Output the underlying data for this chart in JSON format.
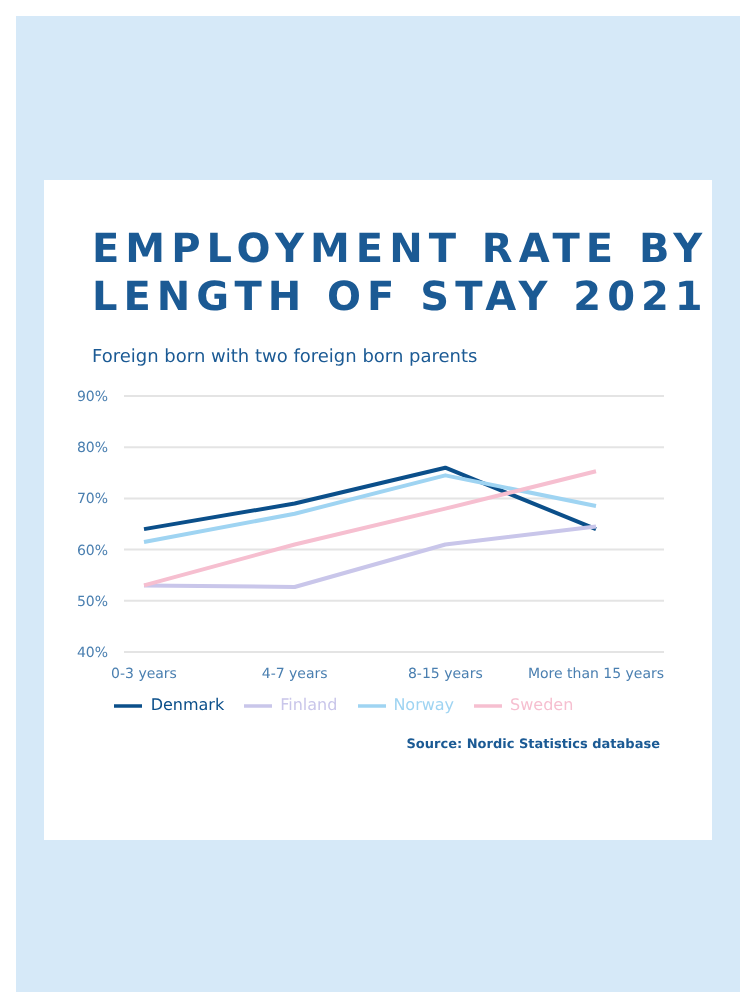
{
  "chart_data": {
    "type": "line",
    "title": "EMPLOYMENT RATE BY LENGTH OF STAY 2021",
    "subtitle": "Foreign born with two foreign born parents",
    "categories": [
      "0-3 years",
      "4-7 years",
      "8-15 years",
      "More than 15 years"
    ],
    "series": [
      {
        "name": "Denmark",
        "color": "#0b4f8a",
        "values": [
          64,
          69,
          76,
          64
        ]
      },
      {
        "name": "Finland",
        "color": "#c9c6ea",
        "values": [
          53,
          52.7,
          61,
          64.5
        ]
      },
      {
        "name": "Norway",
        "color": "#9fd4f2",
        "values": [
          61.5,
          67,
          74.5,
          68.5
        ]
      },
      {
        "name": "Sweden",
        "color": "#f6bfd0",
        "values": [
          53,
          61,
          68,
          75.3
        ]
      }
    ],
    "ylim": [
      40,
      90
    ],
    "yticks": [
      {
        "value": 40,
        "label": "40%"
      },
      {
        "value": 50,
        "label": "50%"
      },
      {
        "value": 60,
        "label": "60%"
      },
      {
        "value": 70,
        "label": "70%"
      },
      {
        "value": 80,
        "label": "80%"
      },
      {
        "value": 90,
        "label": "90%"
      }
    ],
    "grid": "y",
    "legend": "bottom",
    "marker": "none",
    "line_style": "solid",
    "annotations": [
      "Source: Nordic Statistics database"
    ]
  }
}
